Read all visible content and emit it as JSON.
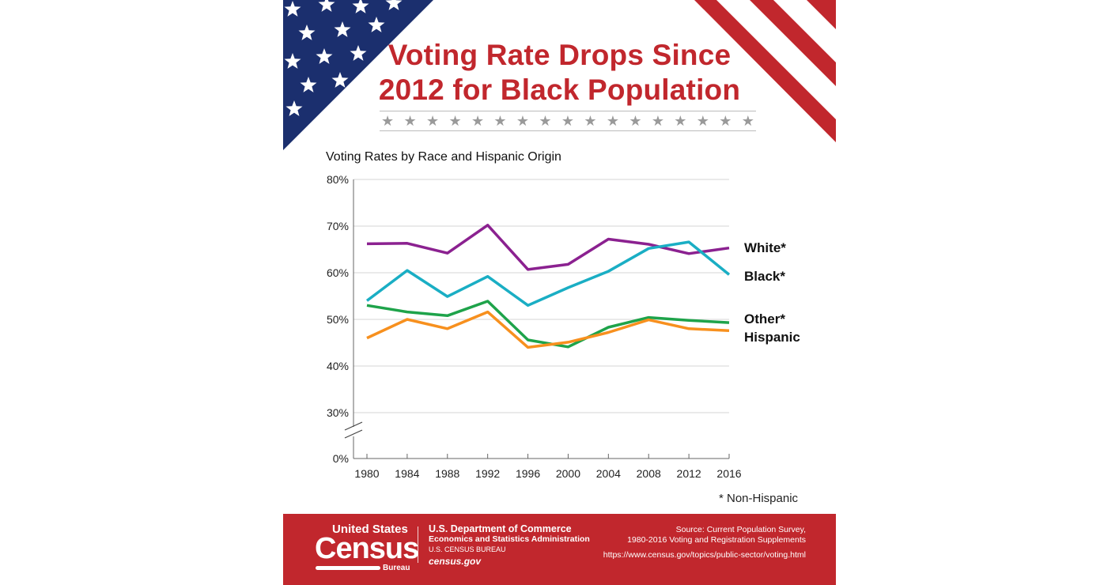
{
  "header": {
    "title_line1": "Voting Rate Drops Since",
    "title_line2": "2012 for Black Population"
  },
  "colors": {
    "white": "#8b2190",
    "black": "#1aaec4",
    "other": "#1ea34a",
    "hispanic": "#f7901e",
    "brand_red": "#c1272d",
    "flag_blue": "#1b2f6e"
  },
  "chart_data": {
    "type": "line",
    "title": "Voting Rates by Race and Hispanic Origin",
    "x": [
      1980,
      1984,
      1988,
      1992,
      1996,
      2000,
      2004,
      2008,
      2012,
      2016
    ],
    "y_ticks": [
      "80%",
      "70%",
      "60%",
      "50%",
      "40%",
      "30%",
      "0%"
    ],
    "y_tick_values": [
      80,
      70,
      60,
      50,
      40,
      30,
      0
    ],
    "x_tick_labels": [
      "1980",
      "1984",
      "1988",
      "1992",
      "1996",
      "2000",
      "2004",
      "2008",
      "2012",
      "2016"
    ],
    "ylim": [
      0,
      80
    ],
    "axis_break": "between 0% and 30%",
    "grid": true,
    "legend_placement": "right, inline labels at line ends",
    "series": [
      {
        "name": "White*",
        "key": "white",
        "values": [
          66.2,
          66.3,
          64.2,
          70.2,
          60.7,
          61.8,
          67.2,
          66.1,
          64.1,
          65.3
        ]
      },
      {
        "name": "Black*",
        "key": "black",
        "values": [
          54.0,
          60.5,
          54.9,
          59.2,
          53.0,
          56.8,
          60.3,
          65.2,
          66.6,
          59.6
        ]
      },
      {
        "name": "Other*",
        "key": "other",
        "values": [
          53.0,
          51.6,
          50.8,
          53.9,
          45.6,
          44.1,
          48.3,
          50.4,
          49.8,
          49.3
        ]
      },
      {
        "name": "Hispanic",
        "key": "hispanic",
        "values": [
          46.0,
          50.0,
          48.0,
          51.6,
          44.0,
          45.1,
          47.2,
          49.9,
          48.0,
          47.6
        ]
      }
    ],
    "footnote": "* Non-Hispanic"
  },
  "footer": {
    "logo": {
      "us": "United States",
      "census": "Census",
      "bureau": "Bureau"
    },
    "dept": "U.S. Department of Commerce",
    "admin": "Economics and Statistics Administration",
    "bureau": "U.S. CENSUS BUREAU",
    "site": "census.gov",
    "source_line1": "Source: Current Population Survey,",
    "source_line2": "1980-2016 Voting and Registration Supplements",
    "url": "https://www.census.gov/topics/public-sector/voting.html"
  }
}
